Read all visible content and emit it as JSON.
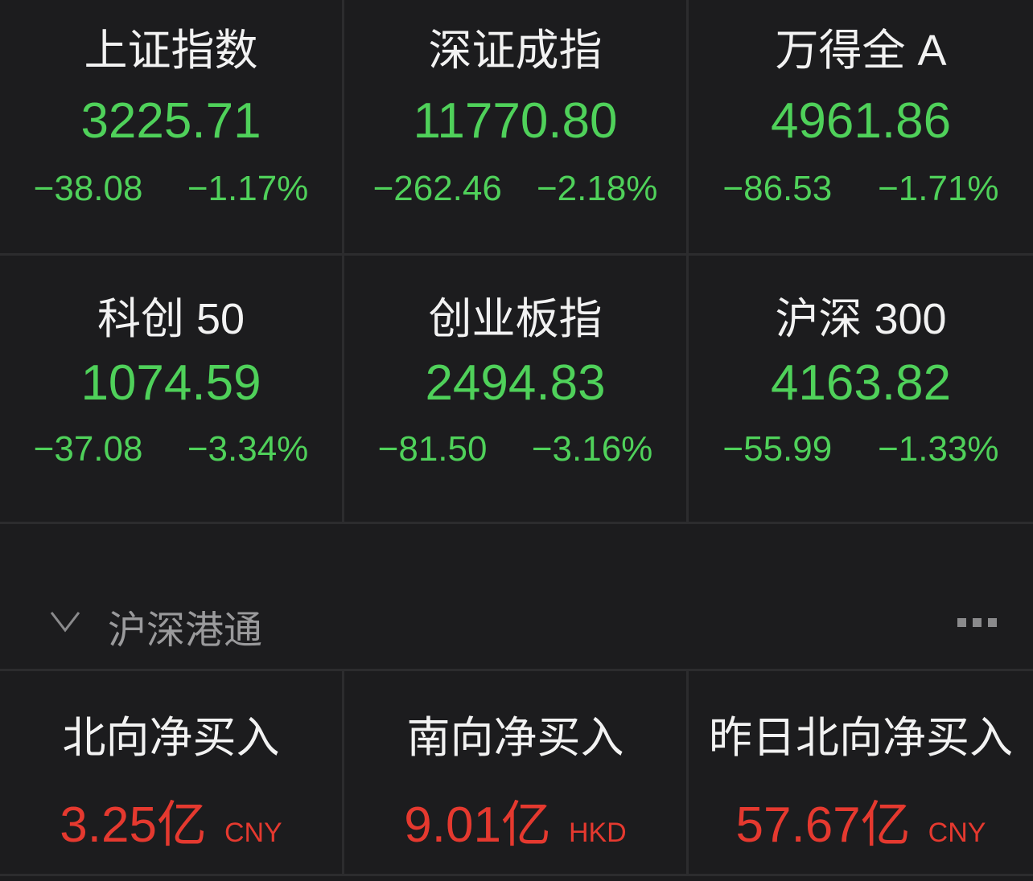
{
  "colors": {
    "up": "#e5392f",
    "down": "#4fd15a",
    "background": "#1c1c1e"
  },
  "indices": [
    {
      "name": "上证指数",
      "price": "3225.71",
      "change": "−38.08",
      "pct": "−1.17%"
    },
    {
      "name": "深证成指",
      "price": "11770.80",
      "change": "−262.46",
      "pct": "−2.18%"
    },
    {
      "name": "万得全 A",
      "price": "4961.86",
      "change": "−86.53",
      "pct": "−1.71%"
    },
    {
      "name": "科创 50",
      "price": "1074.59",
      "change": "−37.08",
      "pct": "−3.34%"
    },
    {
      "name": "创业板指",
      "price": "2494.83",
      "change": "−81.50",
      "pct": "−3.16%"
    },
    {
      "name": "沪深 300",
      "price": "4163.82",
      "change": "−55.99",
      "pct": "−1.33%"
    }
  ],
  "section": {
    "title": "沪深港通",
    "collapse_icon": "chevron-down-icon",
    "more_icon": "more-icon"
  },
  "flows": [
    {
      "name": "北向净买入",
      "value": "3.25亿",
      "currency": "CNY"
    },
    {
      "name": "南向净买入",
      "value": "9.01亿",
      "currency": "HKD"
    },
    {
      "name": "昨日北向净买入",
      "value": "57.67亿",
      "currency": "CNY"
    }
  ]
}
